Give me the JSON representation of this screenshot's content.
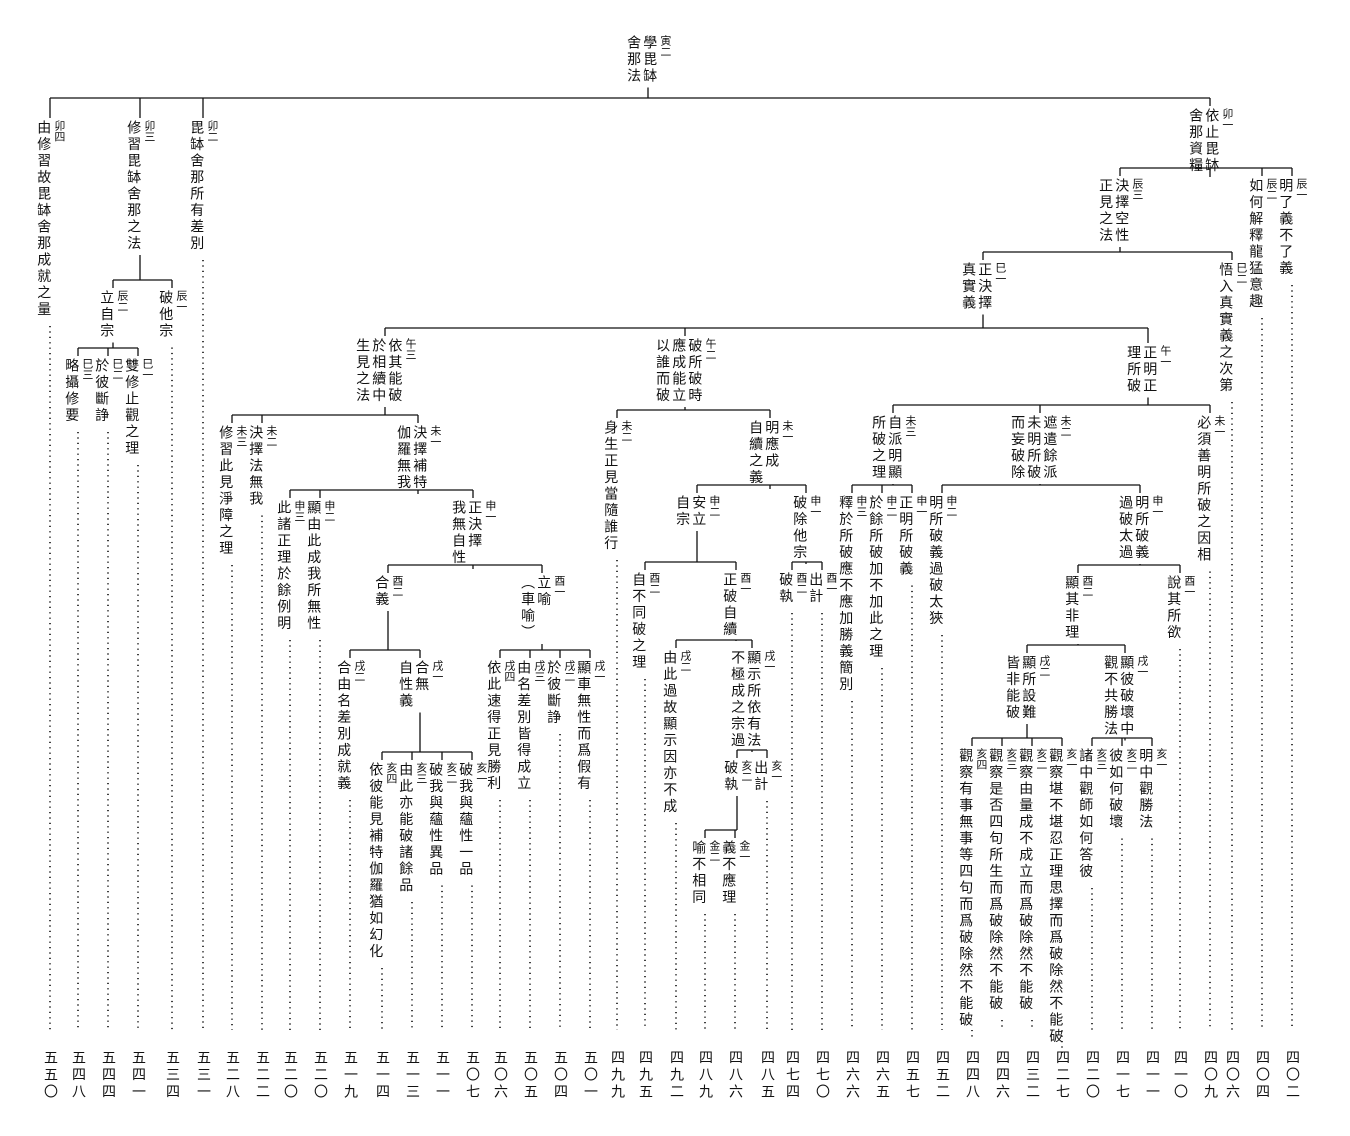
{
  "nodes": [
    {
      "tag": "寅二",
      "lines": [
        "學毘缽",
        "舍那法"
      ]
    },
    {
      "tag": "卯四",
      "lines": [
        "由修習故毘缽舍那成就之量"
      ]
    },
    {
      "tag": "卯三",
      "lines": [
        "修習毘缽舍那之法"
      ]
    },
    {
      "tag": "卯二",
      "lines": [
        "毘缽舍那所有差別"
      ]
    },
    {
      "tag": "卯一",
      "lines": [
        "依止毘缽",
        "舍那資糧"
      ]
    },
    {
      "tag": "辰二",
      "lines": [
        "立自宗"
      ]
    },
    {
      "tag": "辰一",
      "lines": [
        "破他宗"
      ]
    },
    {
      "tag": "巳三",
      "lines": [
        "略攝修要"
      ]
    },
    {
      "tag": "巳二",
      "lines": [
        "於彼斷諍"
      ]
    },
    {
      "tag": "巳一",
      "lines": [
        "雙修止觀之理"
      ]
    },
    {
      "tag": "辰三",
      "lines": [
        "決擇空性",
        "正見之法"
      ]
    },
    {
      "tag": "辰二",
      "lines": [
        "如何解釋龍猛意趣"
      ]
    },
    {
      "tag": "辰一",
      "lines": [
        "明了義不了義"
      ]
    },
    {
      "tag": "巳一",
      "lines": [
        "正決擇",
        "真實義"
      ]
    },
    {
      "tag": "巳二",
      "lines": [
        "悟入真實義之次第"
      ]
    },
    {
      "tag": "午三",
      "lines": [
        "依其能破",
        "於相續中",
        "生見之法"
      ]
    },
    {
      "tag": "午二",
      "lines": [
        "破所破時",
        "應成能立",
        "以誰而破"
      ]
    },
    {
      "tag": "午一",
      "lines": [
        "正明正",
        "理所破"
      ]
    },
    {
      "tag": "未三",
      "lines": [
        "修習此見淨障之理"
      ]
    },
    {
      "tag": "未二",
      "lines": [
        "決擇法無我"
      ]
    },
    {
      "tag": "未一",
      "lines": [
        "決擇補特",
        "伽羅無我"
      ]
    },
    {
      "tag": "申三",
      "lines": [
        "此諸正理於餘例明"
      ]
    },
    {
      "tag": "申二",
      "lines": [
        "顯由此成我所無性"
      ]
    },
    {
      "tag": "申一",
      "lines": [
        "正決擇",
        "我無自性"
      ]
    },
    {
      "tag": "酉二",
      "lines": [
        "合義"
      ]
    },
    {
      "tag": "酉一",
      "lines": [
        "立喻",
        "（車喻）"
      ]
    },
    {
      "tag": "戌二",
      "lines": [
        "合由名差別成就義"
      ]
    },
    {
      "tag": "戌一",
      "lines": [
        "合無",
        "自性義"
      ]
    },
    {
      "tag": "亥四",
      "lines": [
        "依彼能見補特伽羅猶如幻化"
      ]
    },
    {
      "tag": "亥三",
      "lines": [
        "由此亦能破諸餘品"
      ]
    },
    {
      "tag": "亥二",
      "lines": [
        "破我與蘊性異品"
      ]
    },
    {
      "tag": "亥一",
      "lines": [
        "破我與蘊性一品"
      ]
    },
    {
      "tag": "戌四",
      "lines": [
        "依此速得正見勝利"
      ]
    },
    {
      "tag": "戌三",
      "lines": [
        "由名差別皆得成立"
      ]
    },
    {
      "tag": "戌二",
      "lines": [
        "於彼斷諍"
      ]
    },
    {
      "tag": "戌一",
      "lines": [
        "顯車無性而爲假有"
      ]
    },
    {
      "tag": "未二",
      "lines": [
        "身生正見當隨誰行"
      ]
    },
    {
      "tag": "未一",
      "lines": [
        "明應成",
        "自續之義"
      ]
    },
    {
      "tag": "申二",
      "lines": [
        "安立",
        "自宗"
      ]
    },
    {
      "tag": "申一",
      "lines": [
        "破除他宗"
      ]
    },
    {
      "tag": "酉二",
      "lines": [
        "自不同破之理"
      ]
    },
    {
      "tag": "酉一",
      "lines": [
        "正破自續"
      ]
    },
    {
      "tag": "戌二",
      "lines": [
        "由此過故顯示因亦不成"
      ]
    },
    {
      "tag": "戌一",
      "lines": [
        "顯示所依有法",
        "不極成之宗過"
      ]
    },
    {
      "tag": "亥二",
      "lines": [
        "破執"
      ]
    },
    {
      "tag": "亥一",
      "lines": [
        "出計"
      ]
    },
    {
      "tag": "金二",
      "lines": [
        "喻不相同"
      ]
    },
    {
      "tag": "金一",
      "lines": [
        "義不應理"
      ]
    },
    {
      "tag": "酉二",
      "lines": [
        "破執"
      ]
    },
    {
      "tag": "酉一",
      "lines": [
        "出計"
      ]
    },
    {
      "tag": "未三",
      "lines": [
        "自派明顯",
        "所破之理"
      ]
    },
    {
      "tag": "申三",
      "lines": [
        "釋於所破應不應加勝義簡別"
      ]
    },
    {
      "tag": "申二",
      "lines": [
        "於餘所破加不加此之理"
      ]
    },
    {
      "tag": "申一",
      "lines": [
        "正明所破義"
      ]
    },
    {
      "tag": "未二",
      "lines": [
        "遮遣餘派",
        "未明所破",
        "而妄破除"
      ]
    },
    {
      "tag": "未一",
      "lines": [
        "必須善明所破之因相"
      ]
    },
    {
      "tag": "申二",
      "lines": [
        "明所破義過破太狹"
      ]
    },
    {
      "tag": "申一",
      "lines": [
        "明所破義",
        "過破太過"
      ]
    },
    {
      "tag": "酉二",
      "lines": [
        "顯其非理"
      ]
    },
    {
      "tag": "酉一",
      "lines": [
        "說其所欲"
      ]
    },
    {
      "tag": "戌二",
      "lines": [
        "顯所設難",
        "皆非能破"
      ]
    },
    {
      "tag": "戌一",
      "lines": [
        "顯彼破壞中",
        "觀不共勝法"
      ]
    },
    {
      "tag": "亥四",
      "lines": [
        "觀察有事無事等四句而爲破除然不能破"
      ]
    },
    {
      "tag": "亥三",
      "lines": [
        "觀察是否四句所生而爲破除然不能破"
      ]
    },
    {
      "tag": "亥二",
      "lines": [
        "觀察由量成不成立而爲破除然不能破"
      ]
    },
    {
      "tag": "亥一",
      "lines": [
        "觀察堪不堪忍正理思擇而爲破除然不能破"
      ]
    },
    {
      "tag": "亥三",
      "lines": [
        "諸中觀師如何答彼"
      ]
    },
    {
      "tag": "亥二",
      "lines": [
        "彼如何破壞"
      ]
    },
    {
      "tag": "亥一",
      "lines": [
        "明中觀勝法"
      ]
    }
  ],
  "pages": [
    "五五〇",
    "五四八",
    "五四四",
    "五四一",
    "五三四",
    "五三一",
    "五二八",
    "五二二",
    "五二〇",
    "五二〇",
    "五一九",
    "五一四",
    "五一三",
    "五一一",
    "五〇七",
    "五〇六",
    "五〇五",
    "五〇四",
    "五〇一",
    "四九九",
    "四九五",
    "四九二",
    "四八九",
    "四八六",
    "四八五",
    "四七四",
    "四七〇",
    "四六六",
    "四六五",
    "四五七",
    "四五二",
    "四四八",
    "四四六",
    "四三二",
    "四二七",
    "四二〇",
    "四一七",
    "四一一",
    "四一〇",
    "四〇九",
    "四〇六",
    "四〇四",
    "四〇二"
  ]
}
